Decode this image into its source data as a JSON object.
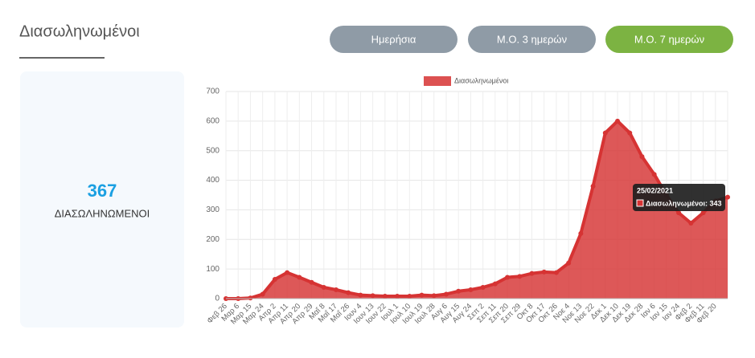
{
  "header": {
    "title": "Διασωληνωμένοι"
  },
  "buttons": [
    {
      "label": "Ημερήσια",
      "active": false
    },
    {
      "label": "Μ.Ο. 3 ημερών",
      "active": false
    },
    {
      "label": "Μ.Ο. 7 ημερών",
      "active": true
    }
  ],
  "summary": {
    "value": 367,
    "label": "ΔΙΑΣΩΛΗΝΩΜΕΝΟΙ"
  },
  "chart_data": {
    "type": "area",
    "categories": [
      "Φεβ 26",
      "Μαρ 6",
      "Μαρ 15",
      "Μαρ 24",
      "Απρ 2",
      "Απρ 11",
      "Απρ 20",
      "Απρ 29",
      "Μαΐ 8",
      "Μαΐ 17",
      "Μαΐ 26",
      "Ιουν 4",
      "Ιουν 13",
      "Ιουν 22",
      "Ιουλ 1",
      "Ιουλ 10",
      "Ιουλ 19",
      "Ιουλ 28",
      "Αυγ 6",
      "Αυγ 15",
      "Αυγ 24",
      "Σεπ 2",
      "Σεπ 11",
      "Σεπ 20",
      "Σεπ 29",
      "Οκτ 8",
      "Οκτ 17",
      "Οκτ 26",
      "Νοε 4",
      "Νοε 13",
      "Νοε 22",
      "Δεκ 1",
      "Δεκ 10",
      "Δεκ 19",
      "Δεκ 28",
      "Ιαν 6",
      "Ιαν 15",
      "Ιαν 24",
      "Φεβ 2",
      "Φεβ 11",
      "Φεβ 20",
      null
    ],
    "series": [
      {
        "name": "Διασωληνωμένοι",
        "color": "#d63333",
        "values": [
          0,
          0,
          2,
          15,
          65,
          88,
          72,
          55,
          38,
          30,
          20,
          12,
          10,
          8,
          8,
          8,
          12,
          10,
          15,
          25,
          30,
          38,
          50,
          72,
          75,
          85,
          90,
          88,
          120,
          220,
          380,
          560,
          600,
          560,
          480,
          420,
          350,
          290,
          255,
          290,
          330,
          343
        ]
      }
    ],
    "ylim": [
      0,
      700
    ],
    "yticks": [
      0,
      100,
      200,
      300,
      400,
      500,
      600,
      700
    ],
    "grid": true,
    "tooltip": {
      "title": "25/02/2021",
      "text": "Διασωληνωμένοι: 343"
    }
  }
}
